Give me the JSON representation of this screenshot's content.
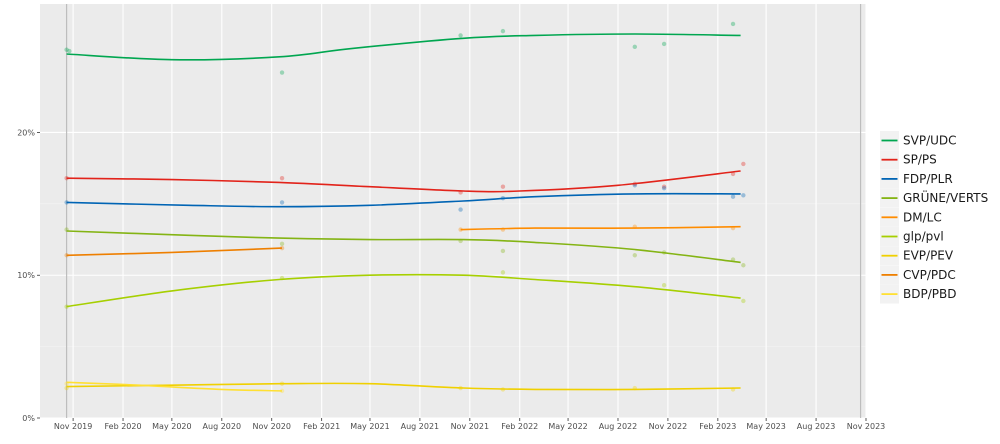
{
  "chart_data": {
    "type": "line",
    "title": "",
    "xlabel": "",
    "ylabel": "",
    "x_range": [
      "2019-09-01",
      "2023-11-01"
    ],
    "ylim": [
      0,
      29
    ],
    "y_ticks": [
      0,
      10,
      20
    ],
    "y_tick_labels": [
      "0%",
      "10%",
      "20%"
    ],
    "x_ticks": [
      "2019-11-01",
      "2020-02-01",
      "2020-05-01",
      "2020-08-01",
      "2020-11-01",
      "2021-02-01",
      "2021-05-01",
      "2021-08-01",
      "2021-11-01",
      "2022-02-01",
      "2022-05-01",
      "2022-08-01",
      "2022-11-01",
      "2023-02-01",
      "2023-05-01",
      "2023-08-01",
      "2023-11-01"
    ],
    "x_tick_labels": [
      "Nov 2019",
      "Feb 2020",
      "May 2020",
      "Aug 2020",
      "Nov 2020",
      "Feb 2021",
      "May 2021",
      "Aug 2021",
      "Nov 2021",
      "Feb 2022",
      "May 2022",
      "Aug 2022",
      "Nov 2022",
      "Feb 2023",
      "May 2023",
      "Aug 2023",
      "Nov 2023"
    ],
    "reference_lines": [
      "2019-10-20",
      "2023-10-22"
    ],
    "grid": true,
    "legend_position": "right",
    "series": [
      {
        "name": "SVP/UDC",
        "color": "#00a650",
        "x": [
          "2019-10-20",
          "2020-05-01",
          "2020-11-15",
          "2021-04-01",
          "2021-10-20",
          "2022-03-01",
          "2022-09-01",
          "2023-03-15"
        ],
        "y": [
          25.5,
          25.1,
          25.3,
          25.9,
          26.6,
          26.8,
          26.9,
          26.8
        ],
        "points_x": [
          "2019-10-20",
          "2019-10-25",
          "2020-11-20",
          "2021-10-15",
          "2022-01-01",
          "2022-09-01",
          "2022-10-25",
          "2023-03-01"
        ],
        "points_y": [
          25.8,
          25.7,
          24.2,
          26.8,
          27.1,
          26.0,
          26.2,
          27.6
        ]
      },
      {
        "name": "SP/PS",
        "color": "#e2231a",
        "x": [
          "2019-10-20",
          "2020-05-01",
          "2020-11-15",
          "2021-05-01",
          "2021-10-20",
          "2022-02-01",
          "2022-08-01",
          "2023-03-15"
        ],
        "y": [
          16.8,
          16.7,
          16.5,
          16.2,
          15.9,
          15.9,
          16.3,
          17.3
        ],
        "points_x": [
          "2019-10-20",
          "2020-11-20",
          "2021-10-15",
          "2022-01-01",
          "2022-09-01",
          "2022-10-25",
          "2023-03-01",
          "2023-03-20"
        ],
        "points_y": [
          16.8,
          16.8,
          15.8,
          16.2,
          16.4,
          16.2,
          17.1,
          17.8
        ]
      },
      {
        "name": "FDP/PLR",
        "color": "#0064b4",
        "x": [
          "2019-10-20",
          "2020-06-01",
          "2020-11-15",
          "2021-05-01",
          "2021-10-20",
          "2022-03-01",
          "2022-09-01",
          "2023-03-15"
        ],
        "y": [
          15.1,
          14.9,
          14.8,
          14.9,
          15.2,
          15.5,
          15.7,
          15.7
        ],
        "points_x": [
          "2019-10-20",
          "2020-11-20",
          "2021-10-15",
          "2022-01-01",
          "2022-09-01",
          "2022-10-25",
          "2023-03-01",
          "2023-03-20"
        ],
        "points_y": [
          15.1,
          15.1,
          14.6,
          15.4,
          16.3,
          16.1,
          15.5,
          15.6
        ]
      },
      {
        "name": "GRÜNE/VERTS",
        "color": "#84b414",
        "x": [
          "2019-10-20",
          "2020-06-01",
          "2020-11-15",
          "2021-05-01",
          "2021-10-20",
          "2022-03-01",
          "2022-09-01",
          "2023-03-15"
        ],
        "y": [
          13.1,
          12.8,
          12.6,
          12.5,
          12.5,
          12.3,
          11.8,
          10.9
        ],
        "points_x": [
          "2019-10-20",
          "2020-11-20",
          "2021-10-15",
          "2022-01-01",
          "2022-09-01",
          "2022-10-25",
          "2023-03-01",
          "2023-03-20"
        ],
        "points_y": [
          13.2,
          12.2,
          12.4,
          11.7,
          11.4,
          11.6,
          11.1,
          10.7
        ]
      },
      {
        "name": "DM/LC",
        "color": "#ff8c00",
        "x": [
          "2021-10-15",
          "2022-03-01",
          "2022-09-01",
          "2023-03-15"
        ],
        "y": [
          13.2,
          13.3,
          13.3,
          13.4
        ],
        "points_x": [
          "2021-10-15",
          "2022-01-01",
          "2022-09-01",
          "2023-03-01"
        ],
        "points_y": [
          13.2,
          13.2,
          13.4,
          13.3
        ]
      },
      {
        "name": "glp/pvl",
        "color": "#a6cf00",
        "x": [
          "2019-10-20",
          "2020-05-01",
          "2020-11-15",
          "2021-05-01",
          "2021-10-20",
          "2022-03-01",
          "2022-09-01",
          "2023-03-15"
        ],
        "y": [
          7.8,
          8.9,
          9.7,
          10.0,
          10.0,
          9.7,
          9.2,
          8.4
        ],
        "points_x": [
          "2019-10-20",
          "2020-11-20",
          "2022-01-01",
          "2022-10-25",
          "2023-03-20"
        ],
        "points_y": [
          7.8,
          9.8,
          10.2,
          9.3,
          8.2
        ]
      },
      {
        "name": "EVP/PEV",
        "color": "#f0d000",
        "x": [
          "2019-10-20",
          "2020-05-01",
          "2020-11-15",
          "2021-05-01",
          "2021-10-20",
          "2022-03-01",
          "2022-09-01",
          "2023-03-15"
        ],
        "y": [
          2.2,
          2.3,
          2.4,
          2.4,
          2.1,
          2.0,
          2.0,
          2.1
        ],
        "points_x": [
          "2019-10-20",
          "2020-11-20",
          "2021-10-15",
          "2022-01-01",
          "2022-09-01",
          "2023-03-01"
        ],
        "points_y": [
          2.1,
          2.4,
          2.1,
          2.0,
          2.1,
          2.0
        ]
      },
      {
        "name": "CVP/PDC",
        "color": "#ee7f00",
        "x": [
          "2019-10-20",
          "2020-05-01",
          "2020-11-20"
        ],
        "y": [
          11.4,
          11.6,
          11.9
        ],
        "points_x": [
          "2019-10-20",
          "2020-11-20"
        ],
        "points_y": [
          11.4,
          11.9
        ]
      },
      {
        "name": "BDP/PBD",
        "color": "#ffe033",
        "x": [
          "2019-10-20",
          "2020-03-01",
          "2020-08-01",
          "2020-11-20"
        ],
        "y": [
          2.5,
          2.3,
          2.0,
          1.9
        ],
        "points_x": [
          "2019-10-20",
          "2020-11-20"
        ],
        "points_y": [
          2.4,
          1.9
        ]
      }
    ]
  }
}
